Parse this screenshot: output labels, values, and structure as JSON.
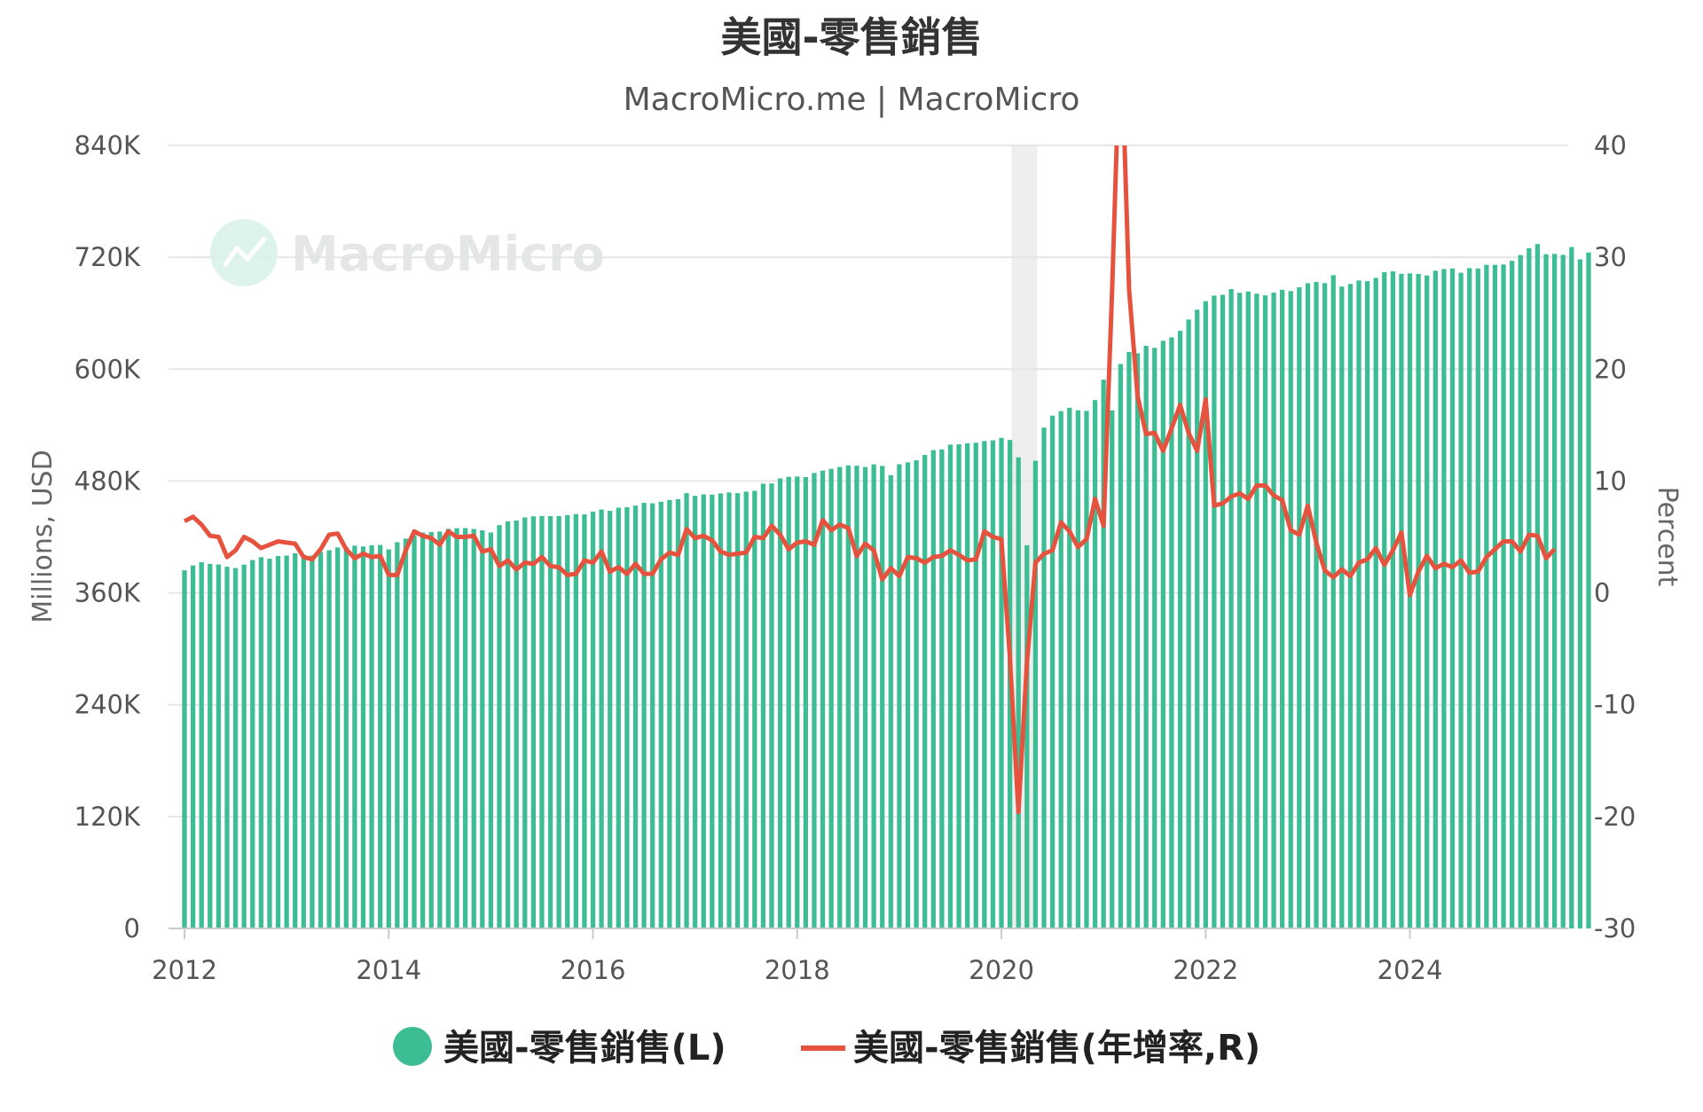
{
  "chart_data": {
    "type": "bar",
    "title": "美國-零售銷售",
    "subtitle": "MacroMicro.me | MacroMicro",
    "watermark": "MacroMicro",
    "ylabel_left": "Millions, USD",
    "ylabel_right": "Percent",
    "y_left": {
      "min": 0,
      "max": 840,
      "unit": "K",
      "ticks": [
        0,
        120,
        240,
        360,
        480,
        600,
        720,
        840
      ],
      "tick_labels": [
        "0",
        "120K",
        "240K",
        "360K",
        "480K",
        "600K",
        "720K",
        "840K"
      ]
    },
    "y_right": {
      "min": -30,
      "max": 40,
      "ticks": [
        -30,
        -20,
        -10,
        0,
        10,
        20,
        30,
        40
      ],
      "tick_labels": [
        "-30",
        "-20",
        "-10",
        "0",
        "10",
        "20",
        "30",
        "40"
      ]
    },
    "x_range": [
      2012.0,
      2025.55
    ],
    "x_ticks": [
      2012,
      2014,
      2016,
      2018,
      2020,
      2022,
      2024
    ],
    "x_tick_labels": [
      "2012",
      "2014",
      "2016",
      "2018",
      "2020",
      "2022",
      "2024"
    ],
    "shaded_region": {
      "start": 2020.1,
      "end": 2020.35
    },
    "colors": {
      "bars": "#3dbd94",
      "line": "#e5533f",
      "grid": "#e6e6e6",
      "shade": "#eeeeee"
    },
    "legend": [
      {
        "name": "美國-零售銷售(L)",
        "marker": "circle"
      },
      {
        "name": "美國-零售銷售(年增率,R)",
        "marker": "line"
      }
    ],
    "series": [
      {
        "name": "美國-零售銷售(L)",
        "axis": "left",
        "type": "bar",
        "start": "2012-01",
        "values": [
          384.2,
          389.4,
          393.0,
          391.1,
          390.5,
          388.0,
          386.6,
          390.3,
          395.2,
          398.3,
          396.6,
          399.5,
          400.0,
          402.5,
          400.8,
          400.0,
          403.9,
          405.7,
          408.7,
          409.0,
          410.6,
          409.8,
          411.1,
          411.4,
          406.6,
          414.4,
          418.2,
          421.9,
          424.7,
          425.2,
          425.8,
          428.7,
          429.4,
          429.5,
          428.6,
          427.1,
          424.8,
          432.7,
          436.7,
          437.6,
          440.9,
          442.1,
          442.4,
          442.3,
          442.4,
          443.4,
          444.5,
          444.2,
          447.2,
          449.4,
          448.0,
          451.4,
          451.8,
          453.6,
          456.6,
          456.1,
          457.8,
          459.6,
          460.5,
          467.0,
          464.0,
          465.7,
          465.4,
          466.7,
          467.7,
          467.0,
          468.6,
          469.5,
          477.2,
          477.4,
          482.8,
          484.5,
          484.8,
          484.2,
          488.6,
          491.2,
          493.1,
          495.0,
          496.8,
          496.4,
          495.0,
          497.9,
          496.2,
          486.3,
          498.0,
          500.0,
          502.2,
          507.9,
          513.1,
          513.9,
          519.1,
          519.4,
          520.5,
          521.0,
          522.8,
          523.7,
          526.3,
          524.0,
          505.4,
          411.1,
          501.7,
          537.3,
          550.1,
          555.0,
          558.6,
          555.9,
          555.2,
          566.8,
          588.7,
          555.8,
          605.4,
          618.4,
          617.0,
          625.0,
          622.8,
          630.4,
          634.1,
          641.1,
          653.2,
          663.8,
          672.9,
          678.9,
          679.8,
          685.9,
          681.9,
          683.3,
          680.9,
          679.2,
          682.2,
          685.1,
          683.7,
          687.9,
          692.2,
          693.5,
          692.3,
          700.8,
          688.6,
          691.4,
          695.1,
          694.4,
          697.9,
          704.1,
          704.9,
          702.3,
          702.7,
          702.1,
          700.5,
          705.6,
          707.4,
          708.0,
          703.4,
          708.3,
          708.0,
          711.9,
          711.9,
          712.3,
          716.2,
          722.4,
          729.8,
          734.2,
          723.3,
          723.7,
          722.6,
          731.0,
          717.8,
          725.1
        ]
      },
      {
        "name": "美國-零售銷售(年增率,R)",
        "axis": "right",
        "type": "line",
        "start": "2012-01",
        "values": [
          6.4,
          6.8,
          6.1,
          5.1,
          5.0,
          3.2,
          3.8,
          5.0,
          4.6,
          4.0,
          4.3,
          4.6,
          4.5,
          4.4,
          3.2,
          3.0,
          3.9,
          5.2,
          5.3,
          3.9,
          3.1,
          3.5,
          3.2,
          3.3,
          1.6,
          1.6,
          3.8,
          5.5,
          5.1,
          4.9,
          4.3,
          5.5,
          5.0,
          5.0,
          5.1,
          3.7,
          3.9,
          2.4,
          2.9,
          2.1,
          2.7,
          2.6,
          3.2,
          2.4,
          2.3,
          1.6,
          1.7,
          2.9,
          2.7,
          3.7,
          1.9,
          2.3,
          1.7,
          2.6,
          1.7,
          1.7,
          3.0,
          3.6,
          3.4,
          5.7,
          4.9,
          5.1,
          4.7,
          3.7,
          3.4,
          3.5,
          3.6,
          5.0,
          4.9,
          6.0,
          5.2,
          3.9,
          4.5,
          4.6,
          4.3,
          6.5,
          5.6,
          6.1,
          5.8,
          3.3,
          4.4,
          3.8,
          1.2,
          2.2,
          1.5,
          3.2,
          3.1,
          2.7,
          3.2,
          3.3,
          3.8,
          3.4,
          2.9,
          3.0,
          5.5,
          5.0,
          4.8,
          -5.8,
          -19.6,
          -6.2,
          2.7,
          3.5,
          3.8,
          6.3,
          5.5,
          4.1,
          4.8,
          8.4,
          6.0,
          27.0,
          51.3,
          27.2,
          17.6,
          14.2,
          14.3,
          12.7,
          14.7,
          16.8,
          14.3,
          12.7,
          17.3,
          7.8,
          8.0,
          8.6,
          8.9,
          8.4,
          9.6,
          9.6,
          8.7,
          8.3,
          5.6,
          5.2,
          7.8,
          4.5,
          2.0,
          1.4,
          2.1,
          1.5,
          2.7,
          3.0,
          4.0,
          2.5,
          3.8,
          5.4,
          -0.2,
          1.9,
          3.3,
          2.2,
          2.6,
          2.3,
          2.9,
          1.8,
          1.9,
          3.2,
          3.9,
          4.6,
          4.6,
          3.7,
          5.2,
          5.1,
          3.1,
          3.9
        ]
      }
    ]
  }
}
